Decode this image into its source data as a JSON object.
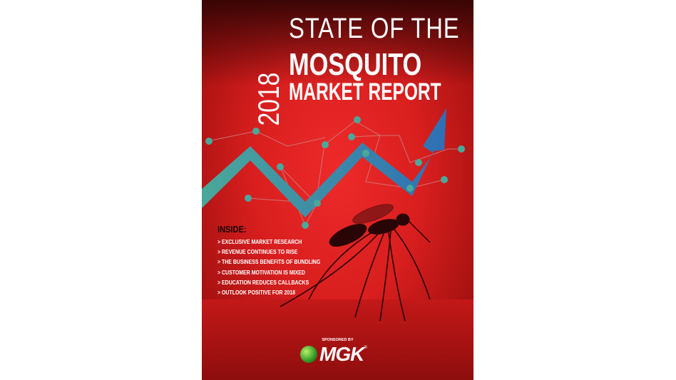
{
  "cover": {
    "title_line1": "STATE OF THE",
    "year": "2018",
    "title_line2": "MOSQUITO",
    "title_line3": "MARKET REPORT",
    "inside_heading": "INSIDE:",
    "inside_items": [
      "> EXCLUSIVE MARKET RESEARCH",
      "> REVENUE CONTINUES TO RISE",
      "> THE BUSINESS BENEFITS OF BUNDLING",
      "> CUSTOMER MOTIVATION IS MIXED",
      "> EDUCATION REDUCES CALLBACKS",
      "> OUTLOOK POSITIVE FOR 2018"
    ],
    "sponsored_by": "SPONSORED BY",
    "sponsor_logo": "MGK",
    "sponsor_logo_mark": "®"
  },
  "colors": {
    "background": "#d81e1e",
    "arrow_start": "#4aa89a",
    "arrow_end": "#2f6fb5",
    "dots": "#4aa89a"
  }
}
